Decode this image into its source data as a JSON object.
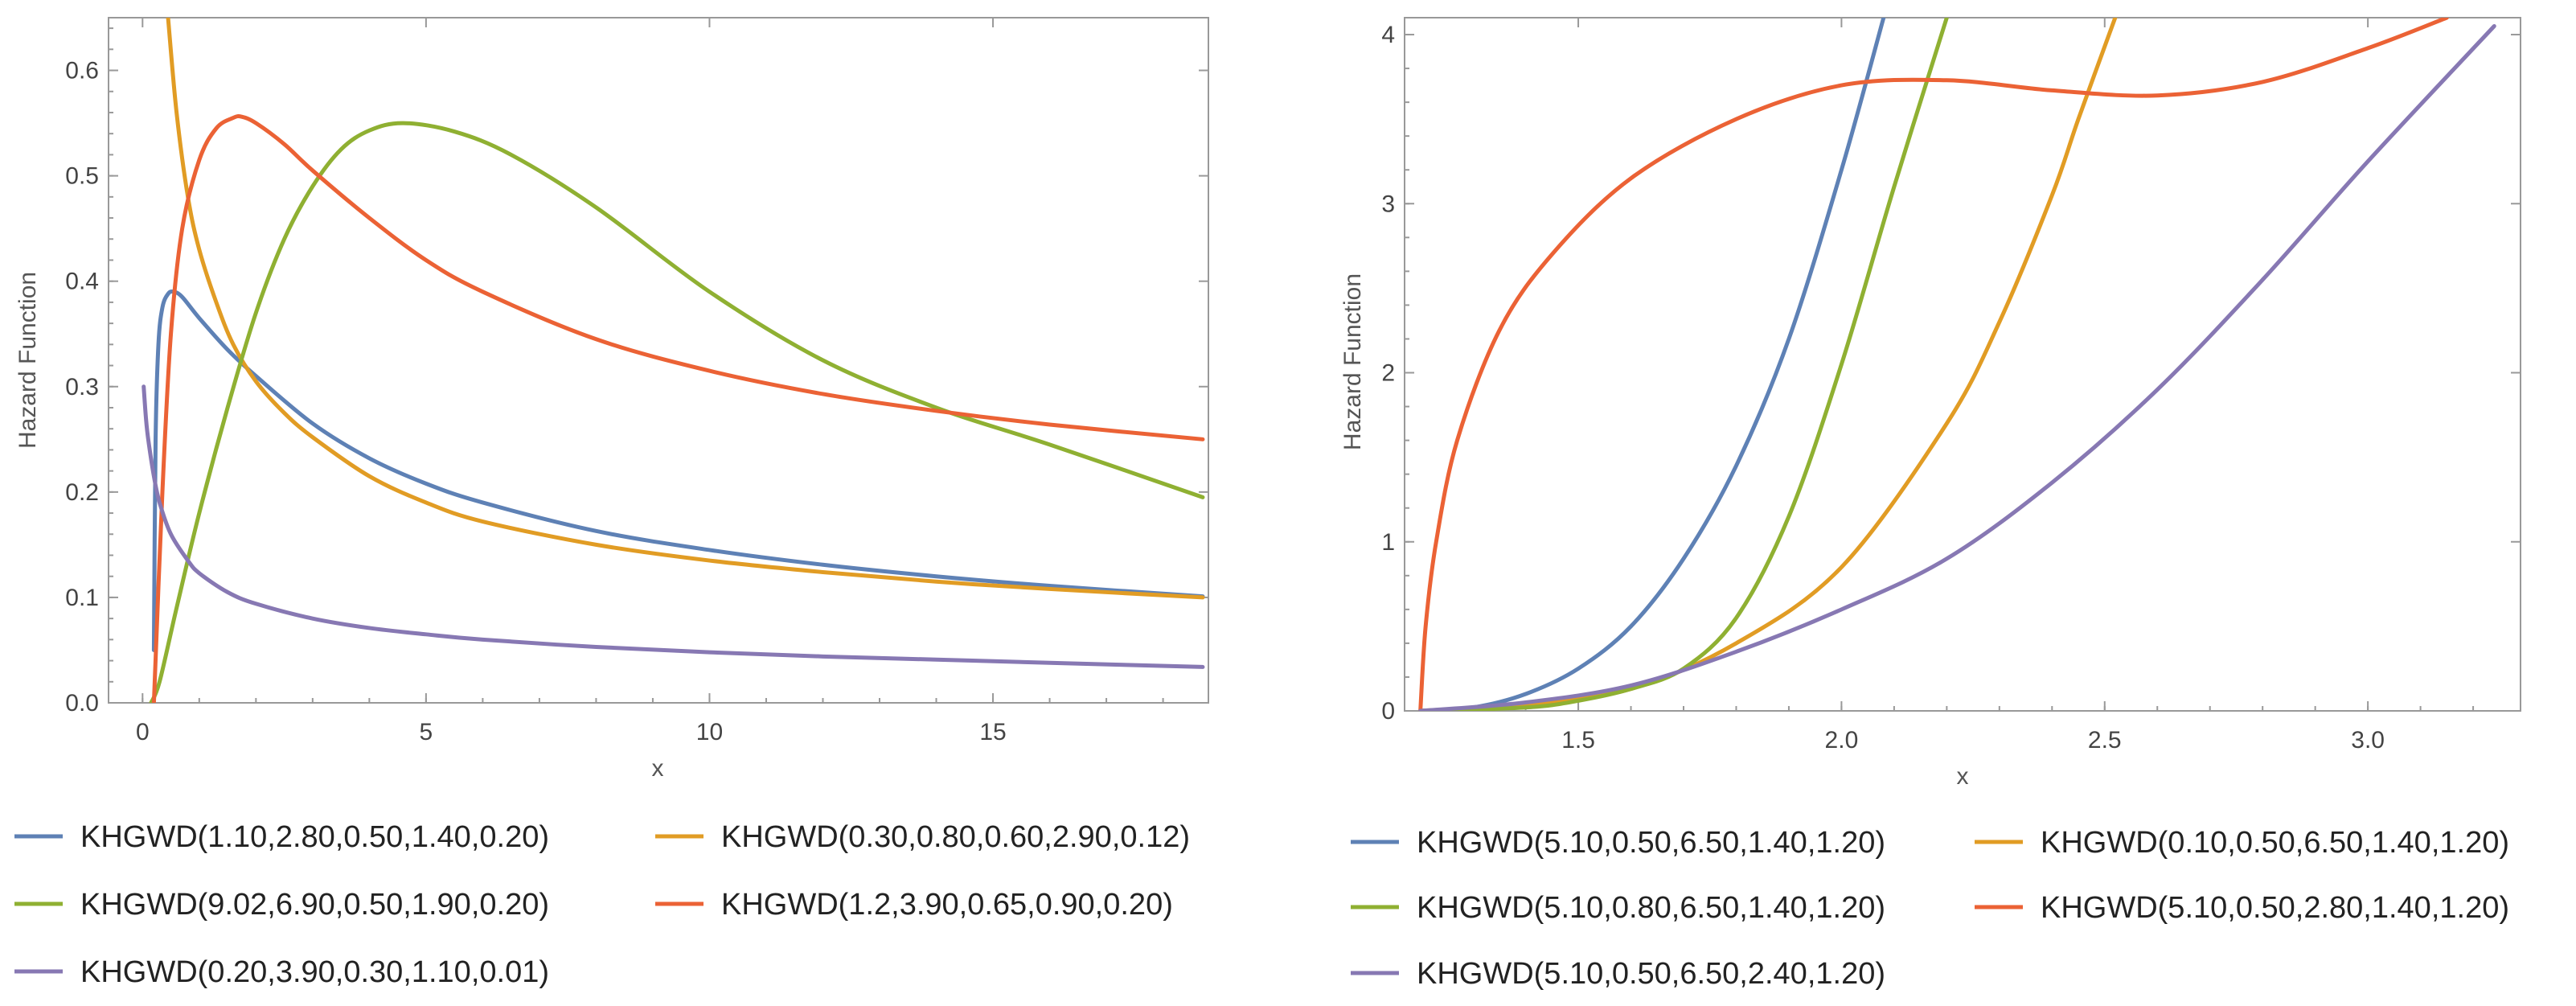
{
  "chart_data": [
    {
      "type": "line",
      "title": "",
      "xlabel": "x",
      "ylabel": "Hazard Function",
      "xlim": [
        -0.6,
        18.8
      ],
      "ylim": [
        0,
        0.65
      ],
      "xticks": [
        0,
        5,
        10,
        15
      ],
      "xtick_labels": [
        "0",
        "5",
        "10",
        "15"
      ],
      "yticks": [
        0,
        0.1,
        0.2,
        0.3,
        0.4,
        0.5,
        0.6
      ],
      "ytick_labels": [
        "0.0",
        "0.1",
        "0.2",
        "0.3",
        "0.4",
        "0.5",
        "0.6"
      ],
      "legend_position": "bottom",
      "series": [
        {
          "name": "KHGWD(1.10,2.80,0.50,1.40,0.20)",
          "color": "#5e81b5",
          "x": [
            0.2,
            0.23,
            0.28,
            0.35,
            0.45,
            0.55,
            0.7,
            1.0,
            1.5,
            2.0,
            3.0,
            4.0,
            5.0,
            6.0,
            8.0,
            10.0,
            12.0,
            14.0,
            16.0,
            18.7
          ],
          "y": [
            0.05,
            0.25,
            0.34,
            0.375,
            0.388,
            0.39,
            0.385,
            0.365,
            0.335,
            0.31,
            0.265,
            0.232,
            0.208,
            0.19,
            0.163,
            0.145,
            0.131,
            0.12,
            0.111,
            0.101
          ]
        },
        {
          "name": "KHGWD(0.30,0.80,0.60,2.90,0.12)",
          "color": "#e19c24",
          "x": [
            0.45,
            0.6,
            0.8,
            1.0,
            1.3,
            1.6,
            2.0,
            2.5,
            3.0,
            4.0,
            5.0,
            6.0,
            8.0,
            10.0,
            12.0,
            14.0,
            16.0,
            18.7
          ],
          "y": [
            0.65,
            0.56,
            0.48,
            0.43,
            0.38,
            0.34,
            0.305,
            0.275,
            0.252,
            0.215,
            0.19,
            0.172,
            0.15,
            0.135,
            0.124,
            0.115,
            0.108,
            0.1
          ]
        },
        {
          "name": "KHGWD(9.02,6.90,0.50,1.90,0.20)",
          "color": "#8fb032",
          "x": [
            0.15,
            0.3,
            0.6,
            1.0,
            1.5,
            2.0,
            2.5,
            3.0,
            3.5,
            4.0,
            4.6,
            5.5,
            6.5,
            8.0,
            10.0,
            12.0,
            14.0,
            16.0,
            18.7
          ],
          "y": [
            0.0,
            0.02,
            0.09,
            0.18,
            0.28,
            0.37,
            0.44,
            0.49,
            0.525,
            0.543,
            0.55,
            0.542,
            0.52,
            0.47,
            0.39,
            0.325,
            0.28,
            0.245,
            0.195
          ]
        },
        {
          "name": "KHGWD(1.2,3.90,0.65,0.90,0.20)",
          "color": "#eb6235",
          "x": [
            0.2,
            0.35,
            0.5,
            0.7,
            1.0,
            1.3,
            1.6,
            1.75,
            2.0,
            2.5,
            3.0,
            4.0,
            5.0,
            6.0,
            8.0,
            10.0,
            12.0,
            14.0,
            16.0,
            18.7
          ],
          "y": [
            0.0,
            0.2,
            0.35,
            0.45,
            0.515,
            0.545,
            0.555,
            0.556,
            0.55,
            0.53,
            0.505,
            0.46,
            0.42,
            0.39,
            0.345,
            0.315,
            0.293,
            0.277,
            0.264,
            0.25
          ]
        },
        {
          "name": "KHGWD(0.20,3.90,0.30,1.10,0.01)",
          "color": "#8778b3",
          "x": [
            0.02,
            0.06,
            0.1,
            0.2,
            0.3,
            0.5,
            0.8,
            1.0,
            1.5,
            2.0,
            3.0,
            4.0,
            5.0,
            6.0,
            8.0,
            10.0,
            12.0,
            14.0,
            16.0,
            18.7
          ],
          "y": [
            0.3,
            0.27,
            0.25,
            0.215,
            0.19,
            0.16,
            0.135,
            0.123,
            0.105,
            0.094,
            0.08,
            0.071,
            0.065,
            0.06,
            0.053,
            0.048,
            0.044,
            0.041,
            0.038,
            0.034
          ]
        }
      ]
    },
    {
      "type": "line",
      "title": "",
      "xlabel": "x",
      "ylabel": "Hazard Function",
      "xlim": [
        1.17,
        3.29
      ],
      "ylim": [
        0,
        4.1
      ],
      "xticks": [
        1.5,
        2.0,
        2.5,
        3.0
      ],
      "xtick_labels": [
        "1.5",
        "2.0",
        "2.5",
        "3.0"
      ],
      "yticks": [
        0,
        1,
        2,
        3,
        4
      ],
      "ytick_labels": [
        "0",
        "1",
        "2",
        "3",
        "4"
      ],
      "legend_position": "bottom",
      "series": [
        {
          "name": "KHGWD(5.10,0.50,6.50,1.40,1.20)",
          "color": "#5e81b5",
          "x": [
            1.2,
            1.3,
            1.4,
            1.5,
            1.6,
            1.7,
            1.8,
            1.9,
            2.0,
            2.08
          ],
          "y": [
            0.0,
            0.02,
            0.1,
            0.25,
            0.5,
            0.9,
            1.45,
            2.2,
            3.2,
            4.1
          ]
        },
        {
          "name": "KHGWD(0.10,0.50,6.50,1.40,1.20)",
          "color": "#e19c24",
          "x": [
            1.2,
            1.4,
            1.6,
            1.8,
            2.0,
            2.2,
            2.3,
            2.4,
            2.45,
            2.52
          ],
          "y": [
            0.0,
            0.04,
            0.13,
            0.4,
            0.85,
            1.7,
            2.3,
            3.05,
            3.5,
            4.1
          ]
        },
        {
          "name": "KHGWD(5.10,0.80,6.50,1.40,1.20)",
          "color": "#8fb032",
          "x": [
            1.2,
            1.4,
            1.5,
            1.6,
            1.7,
            1.8,
            1.9,
            2.0,
            2.1,
            2.2
          ],
          "y": [
            0.0,
            0.02,
            0.06,
            0.13,
            0.25,
            0.55,
            1.15,
            2.05,
            3.1,
            4.1
          ]
        },
        {
          "name": "KHGWD(5.10,0.50,2.80,1.40,1.20)",
          "color": "#eb6235",
          "x": [
            1.2,
            1.21,
            1.23,
            1.27,
            1.35,
            1.45,
            1.6,
            1.8,
            2.0,
            2.2,
            2.4,
            2.6,
            2.8,
            3.0,
            3.15
          ],
          "y": [
            0.0,
            0.5,
            1.0,
            1.6,
            2.25,
            2.7,
            3.15,
            3.5,
            3.7,
            3.73,
            3.67,
            3.64,
            3.72,
            3.92,
            4.1
          ]
        },
        {
          "name": "KHGWD(5.10,0.50,6.50,2.40,1.20)",
          "color": "#8778b3",
          "x": [
            1.2,
            1.4,
            1.6,
            1.8,
            2.0,
            2.2,
            2.4,
            2.6,
            2.8,
            3.0,
            3.24
          ],
          "y": [
            0.0,
            0.05,
            0.15,
            0.35,
            0.6,
            0.9,
            1.35,
            1.9,
            2.55,
            3.25,
            4.05
          ]
        }
      ]
    }
  ]
}
